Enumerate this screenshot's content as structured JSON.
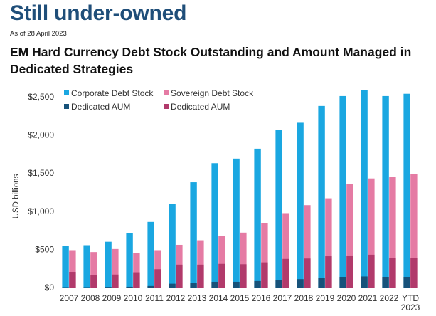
{
  "page": {
    "headline": "Still under-owned",
    "as_of": "As of 28 April 2023"
  },
  "colors": {
    "corporate_stock": "#1aa7e1",
    "sovereign_stock": "#e57ba4",
    "corporate_aum": "#17527a",
    "sovereign_aum": "#b13a6b",
    "headline": "#1f4e79"
  },
  "chart_data": {
    "type": "bar",
    "title": "EM Hard Currency Debt Stock Outstanding and Amount Managed in Dedicated Strategies",
    "ylabel": "USD billions",
    "xlabel": "",
    "ylim": [
      0,
      2500
    ],
    "yticks": [
      0,
      500,
      1000,
      1500,
      2000,
      2500
    ],
    "ytick_labels": [
      "$0",
      "$500",
      "$1,000",
      "$1,500",
      "$2,000",
      "$2,500"
    ],
    "legend_position": "top-left",
    "grid": false,
    "categories": [
      "2007",
      "2008",
      "2009",
      "2010",
      "2011",
      "2012",
      "2013",
      "2014",
      "2015",
      "2016",
      "2017",
      "2018",
      "2019",
      "2020",
      "2021",
      "2022",
      "YTD 2023"
    ],
    "series": [
      {
        "name": "Corporate Debt Stock",
        "role": "stock",
        "group": "corporate",
        "values": [
          545,
          555,
          600,
          710,
          860,
          1100,
          1380,
          1630,
          1690,
          1820,
          2070,
          2160,
          2380,
          2510,
          2590,
          2510,
          2540
        ]
      },
      {
        "name": "Dedicated AUM",
        "role": "aum",
        "group": "corporate",
        "values": [
          5,
          5,
          8,
          10,
          20,
          50,
          65,
          75,
          75,
          85,
          95,
          110,
          125,
          140,
          145,
          140,
          140
        ]
      },
      {
        "name": "Sovereign Debt Stock",
        "role": "stock",
        "group": "sovereign",
        "values": [
          490,
          465,
          505,
          450,
          490,
          560,
          620,
          680,
          720,
          840,
          975,
          1080,
          1170,
          1360,
          1430,
          1450,
          1490
        ]
      },
      {
        "name": "Dedicated AUM",
        "role": "aum",
        "group": "sovereign",
        "values": [
          205,
          165,
          170,
          200,
          240,
          300,
          300,
          310,
          305,
          330,
          375,
          380,
          410,
          420,
          430,
          390,
          385
        ]
      }
    ]
  }
}
